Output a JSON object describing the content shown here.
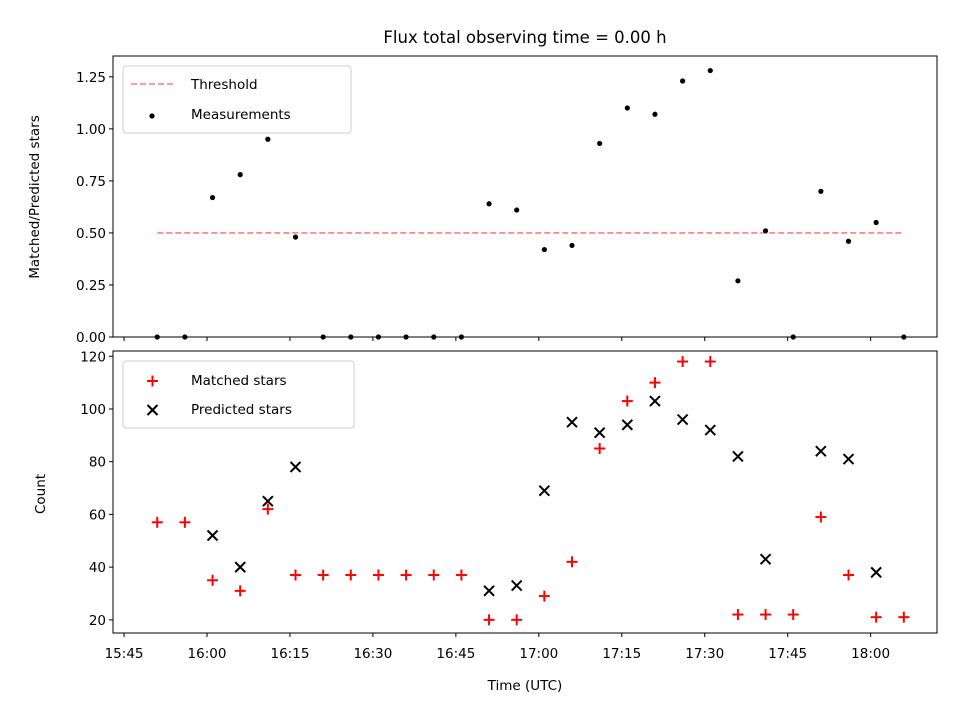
{
  "chart_data": [
    {
      "type": "scatter",
      "title": "Flux total observing time = 0.00 h",
      "xlabel": "",
      "ylabel": "Matched/Predicted stars",
      "xlim": [
        "15:43",
        "18:12"
      ],
      "ylim": [
        0,
        1.35
      ],
      "yticks": [
        "0.00",
        "0.25",
        "0.50",
        "0.75",
        "1.00",
        "1.25"
      ],
      "legend_position": "top-left",
      "series": [
        {
          "name": "Threshold",
          "style": "dashed-line",
          "color": "#ff7f7f",
          "x": [
            "15:51",
            "18:06"
          ],
          "values": [
            0.5,
            0.5
          ]
        },
        {
          "name": "Measurements",
          "style": "dot",
          "color": "#000000",
          "x": [
            "15:51",
            "15:56",
            "16:01",
            "16:06",
            "16:11",
            "16:16",
            "16:21",
            "16:26",
            "16:31",
            "16:36",
            "16:41",
            "16:46",
            "16:51",
            "16:56",
            "17:01",
            "17:06",
            "17:11",
            "17:16",
            "17:21",
            "17:26",
            "17:31",
            "17:36",
            "17:41",
            "17:46",
            "17:51",
            "17:56",
            "18:01",
            "18:06"
          ],
          "values": [
            0.0,
            0.0,
            0.67,
            0.78,
            0.95,
            0.48,
            0.0,
            0.0,
            0.0,
            0.0,
            0.0,
            0.0,
            0.64,
            0.61,
            0.42,
            0.44,
            0.93,
            1.1,
            1.07,
            1.23,
            1.28,
            0.27,
            0.51,
            0.0,
            0.7,
            0.46,
            0.55,
            0.0
          ]
        }
      ]
    },
    {
      "type": "scatter",
      "title": "",
      "xlabel": "Time (UTC)",
      "ylabel": "Count",
      "xlim": [
        "15:43",
        "18:12"
      ],
      "ylim": [
        15,
        122
      ],
      "yticks": [
        "20",
        "40",
        "60",
        "80",
        "100",
        "120"
      ],
      "xticks": [
        "15:45",
        "16:00",
        "16:15",
        "16:30",
        "16:45",
        "17:00",
        "17:15",
        "17:30",
        "17:45",
        "18:00"
      ],
      "legend_position": "top-left",
      "series": [
        {
          "name": "Matched stars",
          "style": "plus",
          "color": "#ff0000",
          "x": [
            "15:51",
            "15:56",
            "16:01",
            "16:06",
            "16:11",
            "16:16",
            "16:21",
            "16:26",
            "16:31",
            "16:36",
            "16:41",
            "16:46",
            "16:51",
            "16:56",
            "17:01",
            "17:06",
            "17:11",
            "17:16",
            "17:21",
            "17:26",
            "17:31",
            "17:36",
            "17:41",
            "17:46",
            "17:51",
            "17:56",
            "18:01",
            "18:06"
          ],
          "values": [
            57,
            57,
            35,
            31,
            62,
            37,
            37,
            37,
            37,
            37,
            37,
            37,
            20,
            20,
            29,
            42,
            85,
            103,
            110,
            118,
            118,
            22,
            22,
            22,
            59,
            37,
            21,
            21
          ]
        },
        {
          "name": "Predicted stars",
          "style": "cross",
          "color": "#000000",
          "x": [
            "16:01",
            "16:06",
            "16:11",
            "16:16",
            "16:51",
            "16:56",
            "17:01",
            "17:06",
            "17:11",
            "17:16",
            "17:21",
            "17:26",
            "17:31",
            "17:36",
            "17:41",
            "17:51",
            "17:56",
            "18:01"
          ],
          "values": [
            52,
            40,
            65,
            78,
            31,
            33,
            69,
            95,
            91,
            94,
            103,
            96,
            92,
            82,
            43,
            84,
            81,
            38
          ]
        }
      ]
    }
  ]
}
